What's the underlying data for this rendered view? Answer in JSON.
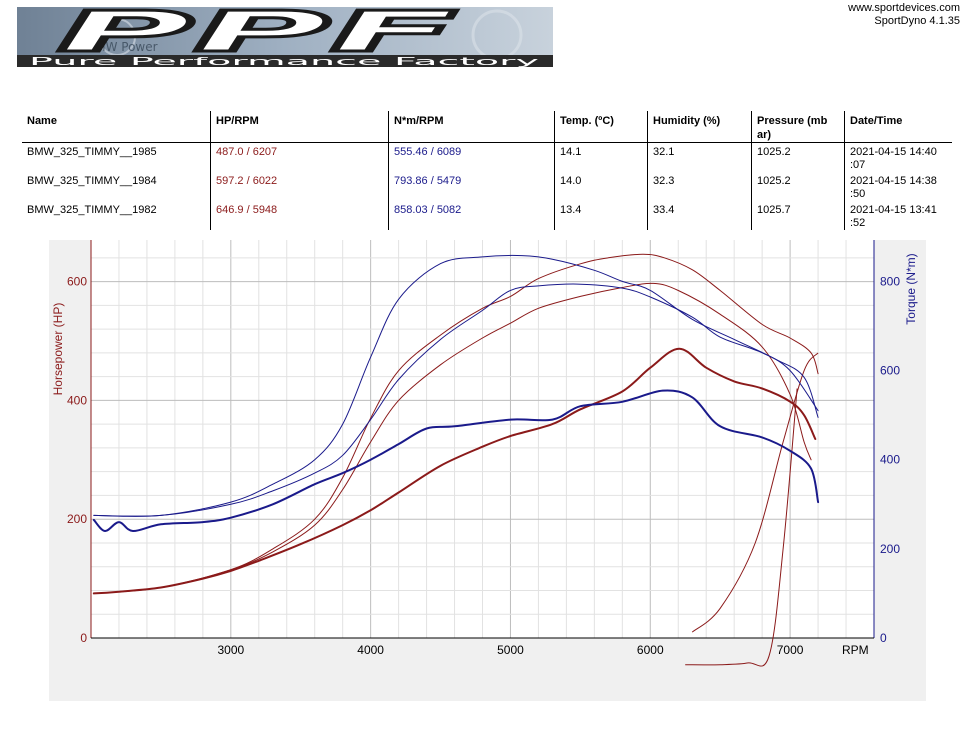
{
  "header": {
    "website": "www.sportdevices.com",
    "software": "SportDyno 4.1.35",
    "logo": {
      "icon": "ppf-logo",
      "text": "PPF",
      "subtext": "Pure Performance Factory",
      "emblem": "BMW Power"
    }
  },
  "table": {
    "columns": [
      "Name",
      "HP/RPM",
      "N*m/RPM",
      "Temp. (ºC)",
      "Humidity (%)",
      "Pressure (mb ar)",
      "Date/Time"
    ],
    "rows": [
      {
        "name": "BMW_325_TIMMY__1985",
        "hp": "487.0 / 6207",
        "torque": "555.46 / 6089",
        "temp": "14.1",
        "humidity": "32.1",
        "pressure": "1025.2",
        "datetime": "2021-04-15 14:40 :07"
      },
      {
        "name": "BMW_325_TIMMY__1984",
        "hp": "597.2 / 6022",
        "torque": "793.86 / 5479",
        "temp": "14.0",
        "humidity": "32.3",
        "pressure": "1025.2",
        "datetime": "2021-04-15 14:38 :50"
      },
      {
        "name": "BMW_325_TIMMY__1982",
        "hp": "646.9 / 5948",
        "torque": "858.03 / 5082",
        "temp": "13.4",
        "humidity": "33.4",
        "pressure": "1025.7",
        "datetime": "2021-04-15 13:41 :52"
      }
    ]
  },
  "chart_data": {
    "type": "line",
    "xlabel": "RPM",
    "ylabel_left": "Horsepower (HP)",
    "ylabel_right": "Torque (N*m)",
    "xlim": [
      2000,
      7600
    ],
    "ylim_left": [
      0,
      670
    ],
    "ylim_right": [
      0,
      893
    ],
    "xticks": [
      3000,
      4000,
      5000,
      6000,
      7000
    ],
    "yticks_left": [
      0,
      200,
      400,
      600
    ],
    "yticks_right": [
      0,
      200,
      400,
      600,
      800
    ],
    "grid": true,
    "colors": {
      "hp": "#8b1a1a",
      "torque": "#1a1a8b",
      "hp_axis": "#8b1a1a",
      "torque_axis": "#1a1a8b",
      "background": "#f0f0f0"
    },
    "series": [
      {
        "run": "1985",
        "measure": "hp",
        "weight": "bold",
        "x": [
          2020,
          2200,
          2500,
          2800,
          3000,
          3200,
          3500,
          3800,
          4000,
          4200,
          4500,
          4800,
          5000,
          5300,
          5500,
          5800,
          6000,
          6207,
          6400,
          6600,
          6800,
          7000,
          7100,
          7180
        ],
        "y": [
          75,
          78,
          85,
          100,
          113,
          130,
          158,
          190,
          215,
          245,
          290,
          322,
          340,
          360,
          385,
          415,
          455,
          487,
          455,
          432,
          420,
          398,
          375,
          335
        ]
      },
      {
        "run": "1984",
        "measure": "hp",
        "weight": "thin",
        "x": [
          2020,
          2500,
          3000,
          3300,
          3600,
          3800,
          4000,
          4200,
          4500,
          4800,
          5000,
          5200,
          5500,
          5800,
          6022,
          6200,
          6500,
          6800,
          7000,
          7100,
          7150
        ],
        "y": [
          75,
          85,
          115,
          145,
          190,
          250,
          330,
          400,
          460,
          505,
          530,
          555,
          575,
          590,
          597,
          585,
          545,
          490,
          410,
          330,
          300
        ]
      },
      {
        "run": "1982",
        "measure": "hp",
        "weight": "thin",
        "x": [
          2020,
          2500,
          3000,
          3300,
          3600,
          3800,
          4000,
          4200,
          4500,
          4800,
          5000,
          5200,
          5500,
          5700,
          5948,
          6100,
          6300,
          6500,
          6800,
          7000,
          7150,
          7200
        ],
        "y": [
          75,
          85,
          115,
          150,
          200,
          270,
          370,
          450,
          510,
          555,
          575,
          605,
          630,
          640,
          646,
          640,
          620,
          585,
          528,
          505,
          480,
          445
        ]
      },
      {
        "run": "1985",
        "measure": "torque",
        "weight": "bold",
        "x": [
          2020,
          2100,
          2200,
          2300,
          2500,
          2800,
          3000,
          3300,
          3600,
          3800,
          4000,
          4200,
          4400,
          4600,
          5000,
          5300,
          5500,
          5800,
          6089,
          6300,
          6500,
          6800,
          7000,
          7150,
          7200
        ],
        "y": [
          265,
          240,
          260,
          240,
          255,
          260,
          270,
          300,
          345,
          370,
          400,
          435,
          470,
          475,
          490,
          490,
          520,
          530,
          555,
          540,
          475,
          450,
          420,
          380,
          305
        ]
      },
      {
        "run": "1984",
        "measure": "torque",
        "weight": "thin",
        "x": [
          2020,
          2500,
          3000,
          3300,
          3600,
          3800,
          4000,
          4200,
          4500,
          4800,
          5000,
          5200,
          5479,
          5800,
          6000,
          6300,
          6500,
          6800,
          7000,
          7200
        ],
        "y": [
          275,
          275,
          300,
          330,
          370,
          410,
          490,
          580,
          670,
          735,
          780,
          790,
          794,
          785,
          765,
          720,
          675,
          640,
          600,
          510
        ]
      },
      {
        "run": "1982",
        "measure": "torque",
        "weight": "thin",
        "x": [
          2020,
          2500,
          3000,
          3300,
          3600,
          3800,
          4000,
          4200,
          4500,
          4800,
          5082,
          5300,
          5600,
          5800,
          6000,
          6300,
          6600,
          6900,
          7100,
          7200
        ],
        "y": [
          275,
          275,
          305,
          345,
          400,
          480,
          630,
          760,
          840,
          855,
          858,
          850,
          825,
          800,
          780,
          715,
          670,
          625,
          585,
          495
        ]
      }
    ],
    "decel_curves": [
      {
        "run": "1982",
        "measure": "hp",
        "x": [
          6300,
          6500,
          6750,
          6950,
          7100,
          7200
        ],
        "y": [
          10,
          50,
          160,
          330,
          450,
          480
        ]
      },
      {
        "run": "1984",
        "measure": "hp",
        "x": [
          6250,
          6500,
          6700,
          6850,
          6950,
          7050
        ],
        "y": [
          -45,
          -45,
          -42,
          -30,
          150,
          420
        ]
      }
    ]
  }
}
